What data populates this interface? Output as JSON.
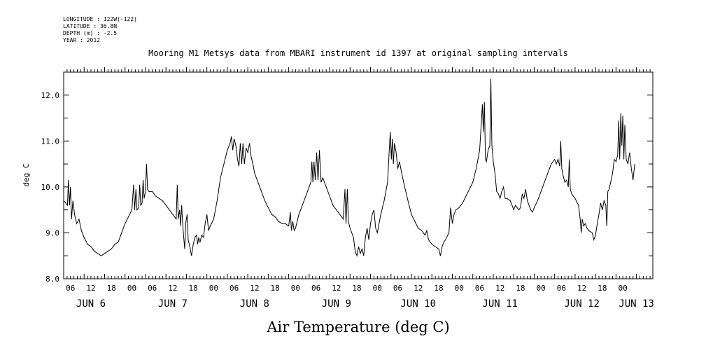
{
  "header": {
    "longitude": "LONGITUDE : 122W(-122)",
    "latitude": "LATITUDE : 36.8N",
    "depth": "DEPTH (m) : -2.5",
    "year": "YEAR : 2012"
  },
  "chart_data": {
    "type": "line",
    "title": "Mooring M1 Metsys data from MBARI instrument id 1397 at original sampling intervals",
    "xlabel": "Air Temperature (deg C)",
    "ylabel": "deg C",
    "ylim": [
      8.0,
      12.5
    ],
    "yticks": [
      "8.0",
      "9.0",
      "10.0",
      "11.0",
      "12.0"
    ],
    "xlim_hours": [
      0,
      172.8
    ],
    "hour_ticks": [
      "06",
      "12",
      "18",
      "00",
      "06",
      "12",
      "18",
      "00",
      "06",
      "12",
      "18",
      "00",
      "06",
      "12",
      "18",
      "00",
      "06",
      "12",
      "18",
      "00",
      "06",
      "12",
      "18",
      "00",
      "06",
      "12",
      "18",
      "00"
    ],
    "day_labels": [
      "JUN  6",
      "JUN  7",
      "JUN  8",
      "JUN  9",
      "JUN 10",
      "JUN 11",
      "JUN 12",
      "JUN 13"
    ],
    "grid": false,
    "series": [
      {
        "points": [
          [
            0.0,
            9.7
          ],
          [
            0.6,
            9.65
          ],
          [
            1.1,
            9.6
          ],
          [
            1.4,
            10.15
          ],
          [
            1.7,
            9.6
          ],
          [
            2.0,
            10.0
          ],
          [
            2.3,
            9.3
          ],
          [
            2.7,
            9.7
          ],
          [
            3.2,
            9.4
          ],
          [
            3.8,
            9.2
          ],
          [
            4.5,
            9.3
          ],
          [
            5.2,
            9.05
          ],
          [
            6.0,
            8.9
          ],
          [
            7.0,
            8.75
          ],
          [
            8.0,
            8.7
          ],
          [
            9.0,
            8.6
          ],
          [
            10.0,
            8.55
          ],
          [
            11.0,
            8.5
          ],
          [
            12.0,
            8.55
          ],
          [
            13.0,
            8.6
          ],
          [
            14.0,
            8.65
          ],
          [
            15.0,
            8.75
          ],
          [
            16.0,
            8.8
          ],
          [
            17.0,
            9.0
          ],
          [
            18.0,
            9.2
          ],
          [
            19.0,
            9.35
          ],
          [
            20.0,
            9.5
          ],
          [
            20.5,
            10.05
          ],
          [
            20.8,
            9.5
          ],
          [
            21.2,
            9.95
          ],
          [
            21.5,
            9.5
          ],
          [
            22.0,
            9.55
          ],
          [
            22.3,
            10.05
          ],
          [
            22.6,
            9.6
          ],
          [
            23.0,
            9.65
          ],
          [
            23.3,
            10.15
          ],
          [
            23.6,
            9.75
          ],
          [
            24.0,
            9.9
          ],
          [
            24.3,
            10.5
          ],
          [
            24.6,
            9.95
          ],
          [
            25.0,
            9.9
          ],
          [
            26.0,
            9.9
          ],
          [
            27.0,
            9.8
          ],
          [
            28.0,
            9.75
          ],
          [
            29.0,
            9.7
          ],
          [
            30.0,
            9.6
          ],
          [
            31.0,
            9.5
          ],
          [
            32.0,
            9.4
          ],
          [
            33.0,
            9.3
          ],
          [
            33.3,
            10.05
          ],
          [
            33.6,
            9.3
          ],
          [
            34.0,
            9.5
          ],
          [
            34.3,
            9.15
          ],
          [
            34.6,
            9.6
          ],
          [
            35.0,
            9.1
          ],
          [
            35.5,
            8.65
          ],
          [
            35.8,
            9.2
          ],
          [
            36.2,
            9.4
          ],
          [
            36.5,
            8.85
          ],
          [
            37.0,
            8.7
          ],
          [
            37.5,
            8.5
          ],
          [
            38.0,
            8.75
          ],
          [
            38.5,
            8.9
          ],
          [
            39.0,
            8.95
          ],
          [
            39.3,
            8.75
          ],
          [
            39.6,
            8.9
          ],
          [
            40.0,
            8.8
          ],
          [
            40.5,
            8.95
          ],
          [
            41.0,
            8.9
          ],
          [
            41.5,
            9.2
          ],
          [
            42.0,
            9.4
          ],
          [
            42.5,
            9.05
          ],
          [
            43.0,
            9.15
          ],
          [
            44.0,
            9.3
          ],
          [
            45.0,
            9.7
          ],
          [
            46.0,
            10.2
          ],
          [
            47.0,
            10.5
          ],
          [
            48.0,
            10.8
          ],
          [
            48.8,
            10.95
          ],
          [
            49.2,
            11.1
          ],
          [
            49.6,
            10.8
          ],
          [
            50.0,
            11.05
          ],
          [
            50.5,
            10.9
          ],
          [
            51.0,
            10.6
          ],
          [
            51.4,
            10.45
          ],
          [
            51.8,
            10.95
          ],
          [
            52.2,
            10.5
          ],
          [
            52.6,
            10.95
          ],
          [
            53.0,
            10.5
          ],
          [
            53.5,
            10.85
          ],
          [
            54.0,
            10.75
          ],
          [
            54.5,
            10.95
          ],
          [
            55.0,
            10.65
          ],
          [
            55.5,
            10.5
          ],
          [
            56.0,
            10.3
          ],
          [
            57.0,
            10.1
          ],
          [
            58.0,
            9.9
          ],
          [
            59.0,
            9.7
          ],
          [
            60.0,
            9.55
          ],
          [
            61.0,
            9.4
          ],
          [
            62.0,
            9.35
          ],
          [
            63.0,
            9.25
          ],
          [
            64.0,
            9.2
          ],
          [
            65.0,
            9.2
          ],
          [
            66.0,
            9.15
          ],
          [
            66.5,
            9.45
          ],
          [
            66.8,
            9.05
          ],
          [
            67.2,
            9.25
          ],
          [
            67.6,
            9.05
          ],
          [
            68.0,
            9.1
          ],
          [
            69.0,
            9.4
          ],
          [
            70.0,
            9.6
          ],
          [
            71.0,
            9.8
          ],
          [
            72.0,
            10.0
          ],
          [
            72.5,
            10.1
          ],
          [
            72.8,
            10.55
          ],
          [
            73.1,
            10.1
          ],
          [
            73.4,
            10.55
          ],
          [
            73.8,
            10.15
          ],
          [
            74.2,
            10.75
          ],
          [
            74.6,
            10.15
          ],
          [
            75.0,
            10.8
          ],
          [
            75.5,
            10.1
          ],
          [
            76.0,
            10.2
          ],
          [
            77.0,
            10.0
          ],
          [
            78.0,
            9.8
          ],
          [
            79.0,
            9.6
          ],
          [
            80.0,
            9.5
          ],
          [
            81.0,
            9.4
          ],
          [
            82.0,
            9.3
          ],
          [
            82.5,
            9.95
          ],
          [
            82.8,
            9.2
          ],
          [
            83.2,
            9.95
          ],
          [
            83.5,
            9.25
          ],
          [
            84.0,
            9.1
          ],
          [
            85.0,
            8.9
          ],
          [
            85.5,
            8.6
          ],
          [
            86.0,
            8.5
          ],
          [
            86.5,
            8.7
          ],
          [
            87.0,
            8.55
          ],
          [
            87.5,
            8.65
          ],
          [
            88.0,
            8.5
          ],
          [
            88.5,
            8.9
          ],
          [
            89.0,
            9.1
          ],
          [
            89.5,
            8.85
          ],
          [
            90.0,
            9.2
          ],
          [
            90.5,
            9.4
          ],
          [
            91.0,
            9.5
          ],
          [
            91.5,
            9.1
          ],
          [
            92.0,
            9.0
          ],
          [
            92.5,
            9.2
          ],
          [
            93.0,
            9.4
          ],
          [
            94.0,
            9.7
          ],
          [
            95.0,
            10.1
          ],
          [
            95.5,
            10.8
          ],
          [
            95.8,
            11.2
          ],
          [
            96.1,
            10.6
          ],
          [
            96.4,
            11.05
          ],
          [
            96.7,
            10.5
          ],
          [
            97.0,
            10.95
          ],
          [
            97.5,
            10.75
          ],
          [
            98.0,
            10.4
          ],
          [
            98.5,
            10.55
          ],
          [
            99.0,
            10.35
          ],
          [
            100.0,
            10.0
          ],
          [
            101.0,
            9.7
          ],
          [
            102.0,
            9.4
          ],
          [
            103.0,
            9.25
          ],
          [
            104.0,
            9.1
          ],
          [
            105.0,
            9.05
          ],
          [
            106.0,
            8.95
          ],
          [
            106.5,
            9.05
          ],
          [
            107.0,
            8.85
          ],
          [
            108.0,
            8.75
          ],
          [
            109.0,
            8.7
          ],
          [
            110.0,
            8.65
          ],
          [
            110.5,
            8.5
          ],
          [
            111.0,
            8.7
          ],
          [
            111.5,
            8.8
          ],
          [
            112.0,
            8.85
          ],
          [
            113.0,
            9.0
          ],
          [
            113.5,
            9.55
          ],
          [
            114.0,
            9.2
          ],
          [
            114.5,
            9.4
          ],
          [
            115.0,
            9.5
          ],
          [
            116.0,
            9.55
          ],
          [
            117.0,
            9.65
          ],
          [
            118.0,
            9.8
          ],
          [
            119.0,
            9.95
          ],
          [
            120.0,
            10.1
          ],
          [
            121.0,
            10.4
          ],
          [
            122.0,
            10.8
          ],
          [
            122.5,
            11.4
          ],
          [
            122.8,
            11.8
          ],
          [
            123.1,
            11.2
          ],
          [
            123.4,
            11.85
          ],
          [
            123.7,
            10.6
          ],
          [
            124.0,
            10.55
          ],
          [
            124.5,
            10.8
          ],
          [
            125.0,
            10.9
          ],
          [
            125.3,
            12.35
          ],
          [
            125.6,
            10.9
          ],
          [
            126.0,
            10.55
          ],
          [
            126.5,
            10.3
          ],
          [
            127.0,
            9.9
          ],
          [
            127.5,
            9.85
          ],
          [
            128.0,
            9.75
          ],
          [
            128.5,
            9.9
          ],
          [
            129.0,
            10.0
          ],
          [
            129.5,
            9.75
          ],
          [
            130.0,
            9.75
          ],
          [
            131.0,
            9.7
          ],
          [
            131.5,
            9.6
          ],
          [
            132.0,
            9.5
          ],
          [
            132.5,
            9.6
          ],
          [
            133.0,
            9.55
          ],
          [
            133.5,
            9.5
          ],
          [
            134.0,
            9.55
          ],
          [
            134.5,
            9.85
          ],
          [
            135.0,
            9.75
          ],
          [
            135.5,
            9.95
          ],
          [
            136.0,
            9.7
          ],
          [
            136.5,
            9.6
          ],
          [
            137.0,
            9.5
          ],
          [
            137.5,
            9.45
          ],
          [
            138.0,
            9.55
          ],
          [
            139.0,
            9.7
          ],
          [
            140.0,
            9.9
          ],
          [
            141.0,
            10.1
          ],
          [
            142.0,
            10.3
          ],
          [
            143.0,
            10.5
          ],
          [
            144.0,
            10.6
          ],
          [
            144.5,
            10.5
          ],
          [
            145.0,
            10.6
          ],
          [
            145.5,
            10.45
          ],
          [
            145.8,
            11.0
          ],
          [
            146.1,
            10.4
          ],
          [
            146.5,
            10.25
          ],
          [
            147.0,
            10.1
          ],
          [
            147.5,
            10.15
          ],
          [
            148.0,
            10.0
          ],
          [
            148.3,
            10.6
          ],
          [
            148.6,
            9.95
          ],
          [
            149.0,
            9.85
          ],
          [
            150.0,
            9.75
          ],
          [
            151.0,
            9.6
          ],
          [
            151.5,
            9.3
          ],
          [
            151.8,
            9.0
          ],
          [
            152.1,
            9.3
          ],
          [
            152.5,
            9.15
          ],
          [
            153.0,
            9.2
          ],
          [
            153.5,
            9.1
          ],
          [
            154.0,
            9.05
          ],
          [
            155.0,
            9.0
          ],
          [
            155.5,
            8.85
          ],
          [
            156.0,
            8.95
          ],
          [
            156.5,
            9.2
          ],
          [
            157.0,
            9.4
          ],
          [
            157.5,
            9.65
          ],
          [
            158.0,
            9.5
          ],
          [
            158.5,
            9.7
          ],
          [
            159.0,
            9.6
          ],
          [
            159.3,
            9.15
          ],
          [
            159.6,
            9.9
          ],
          [
            160.0,
            9.95
          ],
          [
            161.0,
            10.3
          ],
          [
            161.5,
            10.6
          ],
          [
            162.0,
            10.55
          ],
          [
            162.5,
            10.7
          ],
          [
            162.8,
            11.45
          ],
          [
            163.1,
            10.6
          ],
          [
            163.4,
            11.6
          ],
          [
            163.7,
            10.9
          ],
          [
            164.0,
            11.55
          ],
          [
            164.3,
            10.6
          ],
          [
            164.6,
            11.35
          ],
          [
            165.0,
            10.6
          ],
          [
            165.5,
            10.5
          ],
          [
            166.0,
            10.75
          ],
          [
            166.5,
            10.4
          ],
          [
            167.0,
            10.15
          ],
          [
            167.5,
            10.5
          ]
        ]
      }
    ]
  }
}
